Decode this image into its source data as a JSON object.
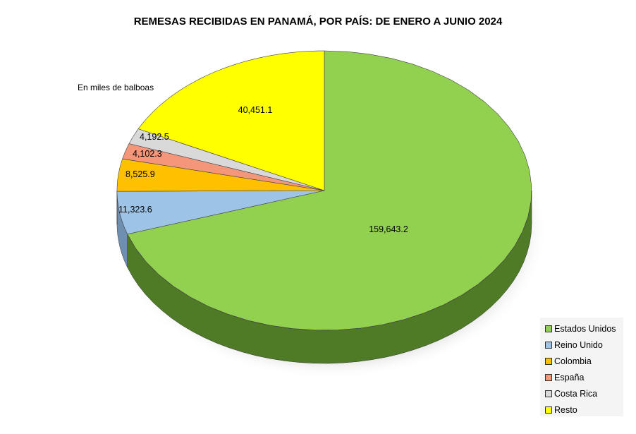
{
  "chart_data": {
    "type": "pie",
    "title": "REMESAS RECIBIDAS EN PANAMÁ, POR PAÍS: DE ENERO A JUNIO 2024",
    "subtitle": "En miles de balboas",
    "legend_position": "bottom-right",
    "categories": [
      "Estados Unidos",
      "Reino Unido",
      "Colombia",
      "España",
      "Costa Rica",
      "Resto"
    ],
    "values": [
      159643.2,
      11323.6,
      8525.9,
      4102.3,
      4192.5,
      40451.1
    ],
    "labels": [
      "159,643.2",
      "11,323.6",
      "8,525.9",
      "4,102.3",
      "4,192.5",
      "40,451.1"
    ],
    "colors": [
      "#92d050",
      "#9dc3e6",
      "#ffc000",
      "#f4967a",
      "#d9d9d9",
      "#ffff00"
    ],
    "side_colors": [
      "#4f7a26",
      "#6f8fb0",
      "#b88a00",
      "#b06a55",
      "#9a9a9a",
      "#b8b800"
    ]
  }
}
